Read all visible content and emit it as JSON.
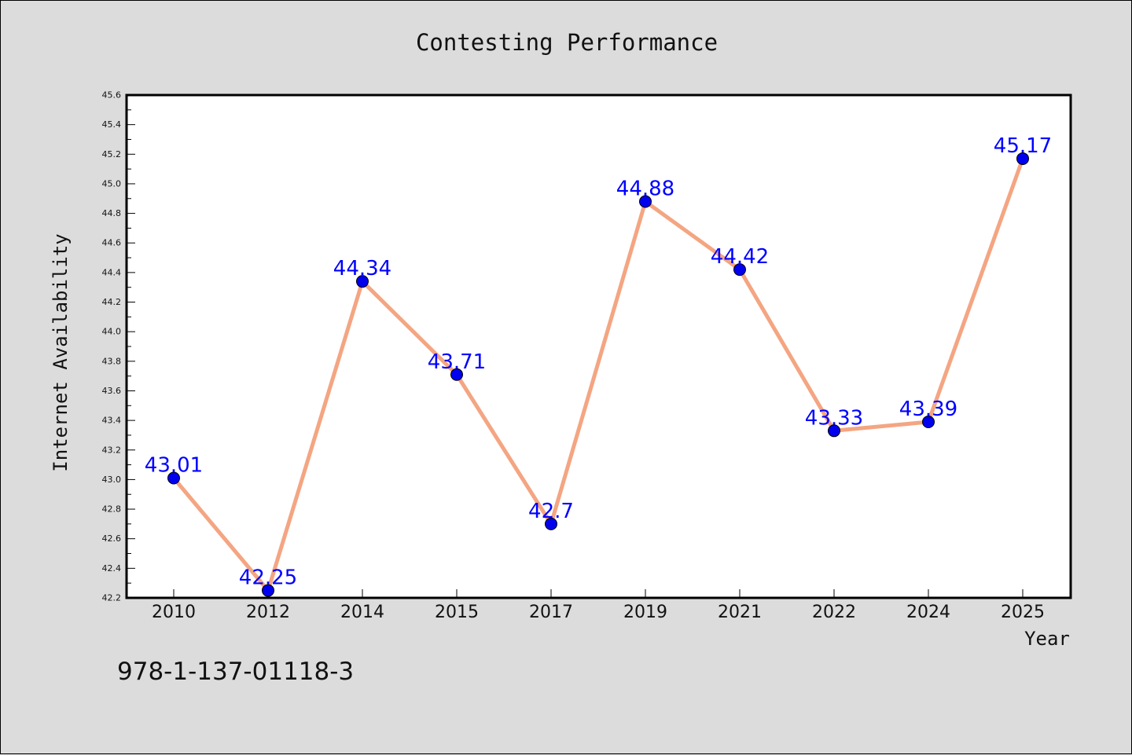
{
  "chart_data": {
    "type": "line",
    "title": "Contesting Performance",
    "xlabel": "Year",
    "ylabel": "Internet Availability",
    "categories": [
      "2010",
      "2012",
      "2014",
      "2015",
      "2017",
      "2019",
      "2021",
      "2022",
      "2024",
      "2025"
    ],
    "series": [
      {
        "values": [
          43.01,
          42.25,
          44.34,
          43.71,
          42.7,
          44.88,
          44.42,
          43.33,
          43.39,
          45.17
        ],
        "labels": [
          "43.01",
          "42.25",
          "44.34",
          "43.71",
          "42.7",
          "44.88",
          "44.42",
          "43.33",
          "43.39",
          "45.17"
        ],
        "line_color": "#f4a582",
        "marker_color": "#0000ee",
        "label_color": "#0000ff"
      }
    ],
    "ylim": [
      42.2,
      45.6
    ],
    "y_ticks": [
      "42.2",
      "42.4",
      "42.6",
      "42.8",
      "43.0",
      "43.2",
      "43.4",
      "43.6",
      "43.8",
      "44.0",
      "44.2",
      "44.4",
      "44.6",
      "44.8",
      "45.0",
      "45.2",
      "45.4",
      "45.6"
    ],
    "grid": false,
    "legend": "none",
    "footnote": "978-1-137-01118-3"
  }
}
